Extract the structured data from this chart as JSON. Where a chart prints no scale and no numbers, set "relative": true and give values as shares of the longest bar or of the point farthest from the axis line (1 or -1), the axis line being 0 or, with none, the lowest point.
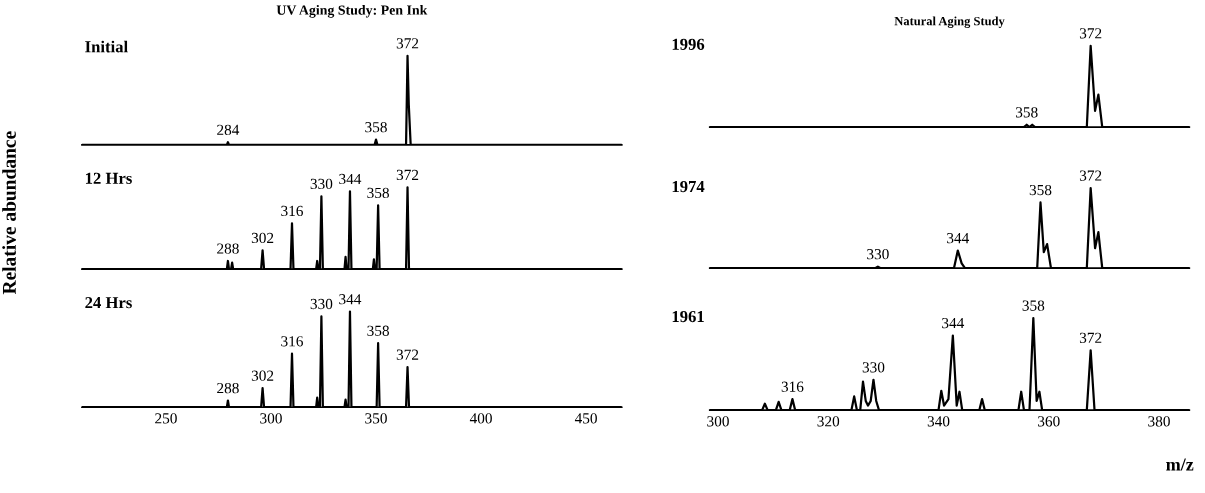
{
  "chart_data": [
    {
      "type": "line",
      "title": "UV Aging Study: Pen Ink",
      "subtitle": "Initial",
      "relative": true,
      "color": "#000000",
      "xlim": [
        210,
        467
      ],
      "xticks": [
        250,
        300,
        350,
        400,
        450
      ],
      "tick_labels": false,
      "x": [
        210,
        279,
        279.5,
        280,
        349.3,
        350,
        350.7,
        364.3,
        365,
        365.6,
        366.5,
        467
      ],
      "values": [
        0,
        0,
        0.03,
        0,
        0,
        0.06,
        0,
        0,
        1,
        0.45,
        0,
        0
      ],
      "annotations": [
        {
          "text": "284",
          "x": 279.5,
          "y": 0.03
        },
        {
          "text": "358",
          "x": 350,
          "y": 0.06
        },
        {
          "text": "372",
          "x": 365,
          "y": 1
        }
      ]
    },
    {
      "type": "line",
      "subtitle": "12 Hrs",
      "ylabel": "Relative abundance",
      "relative": true,
      "color": "#000000",
      "xlim": [
        210,
        467
      ],
      "xticks": [
        250,
        300,
        350,
        400,
        450
      ],
      "tick_labels": false,
      "x": [
        210,
        279,
        279.5,
        280,
        281,
        281.5,
        282,
        295.3,
        296,
        296.7,
        309.3,
        310,
        310.7,
        321.5,
        322,
        322.6,
        323.3,
        324,
        324.7,
        335,
        335.5,
        336,
        336.9,
        337.6,
        338.3,
        348.5,
        349,
        349.5,
        350.3,
        351,
        351.7,
        364.3,
        365,
        365.7,
        467
      ],
      "values": [
        0,
        0,
        0.1,
        0,
        0,
        0.08,
        0,
        0,
        0.23,
        0,
        0,
        0.56,
        0,
        0,
        0.1,
        0,
        0,
        0.89,
        0,
        0,
        0.15,
        0,
        0,
        0.95,
        0,
        0,
        0.12,
        0,
        0,
        0.78,
        0,
        0,
        1,
        0,
        0
      ],
      "annotations": [
        {
          "text": "288",
          "x": 279.5,
          "y": 0.1
        },
        {
          "text": "302",
          "x": 296,
          "y": 0.23
        },
        {
          "text": "316",
          "x": 310,
          "y": 0.56
        },
        {
          "text": "330",
          "x": 324,
          "y": 0.89
        },
        {
          "text": "344",
          "x": 337.6,
          "y": 0.95
        },
        {
          "text": "358",
          "x": 351,
          "y": 0.78
        },
        {
          "text": "372",
          "x": 365,
          "y": 1
        }
      ]
    },
    {
      "type": "line",
      "subtitle": "24 Hrs",
      "relative": true,
      "color": "#000000",
      "xlim": [
        210,
        467
      ],
      "xticks": [
        250,
        300,
        350,
        400,
        450
      ],
      "tick_labels": "x",
      "x": [
        210,
        279,
        279.5,
        280,
        295.3,
        296,
        296.7,
        309.3,
        310,
        310.7,
        321.5,
        322,
        322.6,
        323.3,
        324,
        324.7,
        335,
        335.5,
        336,
        336.9,
        337.6,
        338.3,
        350.3,
        351,
        351.7,
        364.3,
        365,
        365.7,
        467
      ],
      "values": [
        0,
        0,
        0.07,
        0,
        0,
        0.2,
        0,
        0,
        0.56,
        0,
        0,
        0.1,
        0,
        0,
        0.95,
        0,
        0,
        0.08,
        0,
        0,
        1,
        0,
        0,
        0.67,
        0,
        0,
        0.42,
        0,
        0
      ],
      "annotations": [
        {
          "text": "288",
          "x": 279.5,
          "y": 0.07
        },
        {
          "text": "302",
          "x": 296,
          "y": 0.2
        },
        {
          "text": "316",
          "x": 310,
          "y": 0.56
        },
        {
          "text": "330",
          "x": 324,
          "y": 0.95
        },
        {
          "text": "344",
          "x": 337.6,
          "y": 1
        },
        {
          "text": "358",
          "x": 351,
          "y": 0.67
        },
        {
          "text": "372",
          "x": 365,
          "y": 0.42
        }
      ]
    },
    {
      "type": "line",
      "title": "Natural Aging Study",
      "subtitle": "1996",
      "relative": true,
      "color": "#000000",
      "xlim": [
        298.5,
        385.5
      ],
      "xticks": [
        300,
        320,
        340,
        360,
        380
      ],
      "tick_labels": false,
      "x": [
        298.5,
        355.5,
        356,
        356.5,
        357,
        357.5,
        366.9,
        367.6,
        368.4,
        369,
        369.7,
        385.5
      ],
      "values": [
        0,
        0,
        0.03,
        0,
        0.03,
        0,
        0,
        1,
        0.2,
        0.4,
        0,
        0
      ],
      "annotations": [
        {
          "text": "358",
          "x": 356,
          "y": 0.03
        },
        {
          "text": "372",
          "x": 367.6,
          "y": 1
        }
      ]
    },
    {
      "type": "line",
      "subtitle": "1974",
      "relative": true,
      "color": "#000000",
      "xlim": [
        298.5,
        385.5
      ],
      "xticks": [
        300,
        320,
        340,
        360,
        380
      ],
      "tick_labels": false,
      "x": [
        298.5,
        328.5,
        329,
        329.5,
        342.8,
        343.5,
        344.2,
        344.8,
        357.9,
        358.5,
        359.1,
        359.7,
        360.4,
        366.9,
        367.6,
        368.4,
        369,
        369.7,
        385.5
      ],
      "values": [
        0,
        0,
        0.02,
        0,
        0,
        0.22,
        0.06,
        0,
        0,
        0.82,
        0.2,
        0.3,
        0,
        0,
        1,
        0.25,
        0.45,
        0,
        0
      ],
      "annotations": [
        {
          "text": "330",
          "x": 329,
          "y": 0.02
        },
        {
          "text": "344",
          "x": 343.5,
          "y": 0.22
        },
        {
          "text": "358",
          "x": 358.5,
          "y": 0.82
        },
        {
          "text": "372",
          "x": 367.6,
          "y": 1
        }
      ]
    },
    {
      "type": "line",
      "subtitle": "1961",
      "xlabel": "m/z",
      "relative": true,
      "color": "#000000",
      "xlim": [
        298.5,
        385.5
      ],
      "xticks": [
        300,
        320,
        340,
        360,
        380
      ],
      "tick_labels": "x",
      "x": [
        298.5,
        308,
        308.5,
        309,
        310.5,
        311,
        311.5,
        313,
        313.5,
        314,
        324.2,
        324.7,
        325.2,
        325.8,
        326.3,
        326.8,
        327.2,
        327.7,
        328.2,
        328.7,
        329.2,
        340,
        340.5,
        341,
        341.8,
        342.6,
        343.3,
        343.8,
        344.3,
        347.4,
        347.9,
        348.4,
        354.5,
        355,
        355.5,
        356.5,
        357.2,
        357.8,
        358.3,
        358.8,
        366.9,
        367.6,
        368.3,
        385.5
      ],
      "values": [
        0,
        0,
        0.07,
        0,
        0,
        0.09,
        0,
        0,
        0.12,
        0,
        0,
        0.15,
        0,
        0,
        0.31,
        0.1,
        0.05,
        0.1,
        0.33,
        0.1,
        0,
        0,
        0.21,
        0.05,
        0.12,
        0.81,
        0.05,
        0.2,
        0,
        0,
        0.12,
        0,
        0,
        0.2,
        0,
        0,
        1,
        0.1,
        0.2,
        0,
        0,
        0.65,
        0,
        0
      ],
      "annotations": [
        {
          "text": "316",
          "x": 313.5,
          "y": 0.12
        },
        {
          "text": "330",
          "x": 328.2,
          "y": 0.33
        },
        {
          "text": "344",
          "x": 342.6,
          "y": 0.81
        },
        {
          "text": "358",
          "x": 357.2,
          "y": 1
        },
        {
          "text": "372",
          "x": 367.6,
          "y": 0.65
        }
      ]
    }
  ]
}
